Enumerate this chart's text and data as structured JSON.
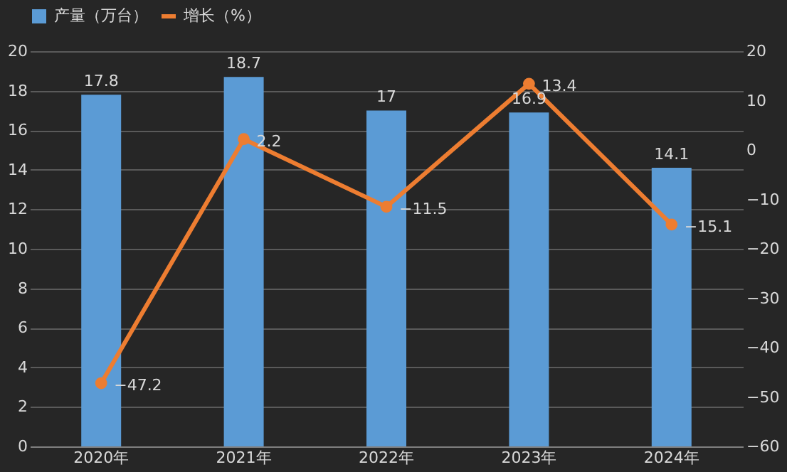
{
  "chart_data": {
    "type": "bar",
    "categories": [
      "2020年",
      "2021年",
      "2022年",
      "2023年",
      "2024年"
    ],
    "series": [
      {
        "name": "产量（万台）",
        "color": "#5b9bd5",
        "values": [
          17.8,
          18.7,
          17,
          16.9,
          14.1
        ]
      },
      {
        "name": "增长（%）",
        "type": "line",
        "axis": "y2",
        "color": "#ed7d31",
        "values": [
          -47.2,
          2.2,
          -11.5,
          13.4,
          -15.1
        ]
      }
    ],
    "ylim": [
      0,
      20
    ],
    "yticks": [
      0,
      2,
      4,
      6,
      8,
      10,
      12,
      14,
      16,
      18,
      20
    ],
    "y2lim": [
      -60,
      20
    ],
    "y2ticks": [
      -60,
      -50,
      -40,
      -30,
      -20,
      -10,
      0,
      10,
      20
    ],
    "grid": "y",
    "legend": "top",
    "marker": "circle",
    "data_labels": true
  }
}
